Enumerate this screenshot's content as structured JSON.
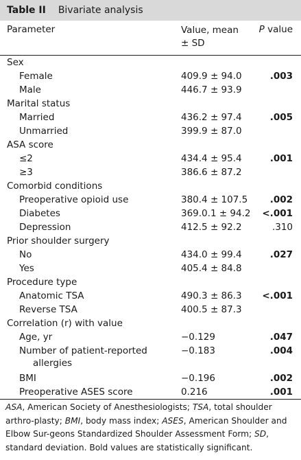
{
  "table": {
    "label": "Table II",
    "title": "Bivariate analysis"
  },
  "header": {
    "parameter": "Parameter",
    "value_line1": "Value, mean",
    "value_line2": "± SD",
    "p_italic": "P",
    "p_rest": " value"
  },
  "rows": [
    {
      "type": "section",
      "name": "Sex"
    },
    {
      "type": "sub",
      "name": "Female",
      "value": "409.9 ± 94.0",
      "p": ".003",
      "bold": true
    },
    {
      "type": "sub",
      "name": "Male",
      "value": "446.7 ± 93.9",
      "p": "",
      "bold": false
    },
    {
      "type": "section",
      "name": "Marital status"
    },
    {
      "type": "sub",
      "name": "Married",
      "value": "436.2 ± 97.4",
      "p": ".005",
      "bold": true
    },
    {
      "type": "sub",
      "name": "Unmarried",
      "value": "399.9 ± 87.0",
      "p": "",
      "bold": false
    },
    {
      "type": "section",
      "name": "ASA score"
    },
    {
      "type": "sub",
      "name": "≤2",
      "value": "434.4 ± 95.4",
      "p": ".001",
      "bold": true
    },
    {
      "type": "sub",
      "name": "≥3",
      "value": "386.6 ± 87.2",
      "p": "",
      "bold": false
    },
    {
      "type": "section",
      "name": "Comorbid conditions"
    },
    {
      "type": "sub",
      "name": "Preoperative opioid use",
      "value": "380.4 ± 107.5",
      "p": ".002",
      "bold": true
    },
    {
      "type": "sub",
      "name": "Diabetes",
      "value": "369.0.1 ± 94.2",
      "p": "<.001",
      "bold": true
    },
    {
      "type": "sub",
      "name": "Depression",
      "value": "412.5 ± 92.2",
      "p": ".310",
      "bold": false
    },
    {
      "type": "section",
      "name": "Prior shoulder surgery"
    },
    {
      "type": "sub",
      "name": "No",
      "value": "434.0 ± 99.4",
      "p": ".027",
      "bold": true
    },
    {
      "type": "sub",
      "name": "Yes",
      "value": "405.4 ± 84.8",
      "p": "",
      "bold": false
    },
    {
      "type": "section",
      "name": "Procedure type"
    },
    {
      "type": "sub",
      "name": "Anatomic TSA",
      "value": "490.3 ± 86.3",
      "p": "<.001",
      "bold": true
    },
    {
      "type": "sub",
      "name": "Reverse TSA",
      "value": "400.5 ± 87.3",
      "p": "",
      "bold": false
    },
    {
      "type": "section",
      "name": "Correlation (r) with value"
    },
    {
      "type": "sub",
      "name": "Age, yr",
      "value": "−0.129",
      "p": ".047",
      "bold": true
    },
    {
      "type": "subtall",
      "name": "Number of patient-reported",
      "name2": "allergies",
      "value": "−0.183",
      "p": ".004",
      "bold": true
    },
    {
      "type": "sub",
      "name": "BMI",
      "value": "−0.196",
      "p": ".002",
      "bold": true
    },
    {
      "type": "sub",
      "name": "Preoperative ASES score",
      "value": "0.216",
      "p": ".001",
      "bold": true
    }
  ],
  "footnote": {
    "asa_abbr": "ASA",
    "asa_text": ", American Society of Anesthesiologists; ",
    "tsa_abbr": "TSA",
    "tsa_text": ", total shoulder arthro-plasty; ",
    "bmi_abbr": "BMI",
    "bmi_text": ", body mass index; ",
    "ases_abbr": "ASES",
    "ases_text": ", American Shoulder and Elbow Sur-geons Standardized Shoulder Assessment Form; ",
    "sd_abbr": "SD",
    "sd_text": ", standard deviation.",
    "bold_note": "Bold values are statistically significant."
  }
}
